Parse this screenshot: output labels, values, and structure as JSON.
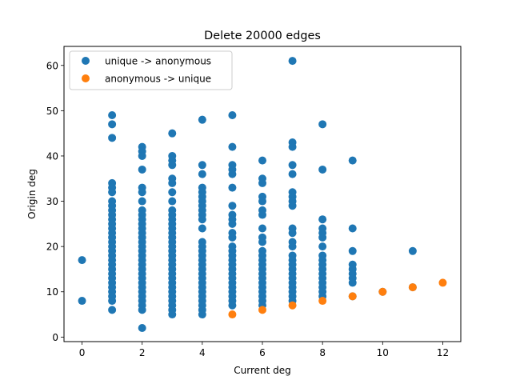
{
  "chart_data": {
    "type": "scatter",
    "title": "Delete 20000 edges",
    "xlabel": "Current deg",
    "ylabel": "Origin deg",
    "xlim": [
      -0.6,
      12.6
    ],
    "ylim": [
      -1.0,
      64.2
    ],
    "xticks": [
      0,
      2,
      4,
      6,
      8,
      10,
      12
    ],
    "yticks": [
      0,
      10,
      20,
      30,
      40,
      50,
      60
    ],
    "grid": false,
    "legend_position": "upper-left",
    "series": [
      {
        "name": "unique -> anonymous",
        "color": "#1f77b4",
        "points": [
          [
            0,
            17
          ],
          [
            0,
            8
          ],
          [
            1,
            49
          ],
          [
            1,
            47
          ],
          [
            1,
            44
          ],
          [
            1,
            34
          ],
          [
            1,
            33
          ],
          [
            1,
            32
          ],
          [
            1,
            30
          ],
          [
            1,
            29
          ],
          [
            1,
            28
          ],
          [
            1,
            27
          ],
          [
            1,
            26
          ],
          [
            1,
            25
          ],
          [
            1,
            24
          ],
          [
            1,
            23
          ],
          [
            1,
            22
          ],
          [
            1,
            21
          ],
          [
            1,
            20
          ],
          [
            1,
            19
          ],
          [
            1,
            18
          ],
          [
            1,
            17
          ],
          [
            1,
            16
          ],
          [
            1,
            15
          ],
          [
            1,
            14
          ],
          [
            1,
            13
          ],
          [
            1,
            12
          ],
          [
            1,
            11
          ],
          [
            1,
            10
          ],
          [
            1,
            9
          ],
          [
            1,
            8
          ],
          [
            1,
            6
          ],
          [
            2,
            42
          ],
          [
            2,
            41
          ],
          [
            2,
            40
          ],
          [
            2,
            37
          ],
          [
            2,
            33
          ],
          [
            2,
            32
          ],
          [
            2,
            30
          ],
          [
            2,
            28
          ],
          [
            2,
            27
          ],
          [
            2,
            26
          ],
          [
            2,
            25
          ],
          [
            2,
            24
          ],
          [
            2,
            23
          ],
          [
            2,
            22
          ],
          [
            2,
            21
          ],
          [
            2,
            20
          ],
          [
            2,
            19
          ],
          [
            2,
            18
          ],
          [
            2,
            17
          ],
          [
            2,
            16
          ],
          [
            2,
            15
          ],
          [
            2,
            14
          ],
          [
            2,
            13
          ],
          [
            2,
            12
          ],
          [
            2,
            11
          ],
          [
            2,
            10
          ],
          [
            2,
            9
          ],
          [
            2,
            8
          ],
          [
            2,
            7
          ],
          [
            2,
            6
          ],
          [
            2,
            2
          ],
          [
            3,
            45
          ],
          [
            3,
            40
          ],
          [
            3,
            39
          ],
          [
            3,
            38
          ],
          [
            3,
            35
          ],
          [
            3,
            34
          ],
          [
            3,
            32
          ],
          [
            3,
            30
          ],
          [
            3,
            28
          ],
          [
            3,
            27
          ],
          [
            3,
            26
          ],
          [
            3,
            25
          ],
          [
            3,
            24
          ],
          [
            3,
            23
          ],
          [
            3,
            22
          ],
          [
            3,
            21
          ],
          [
            3,
            20
          ],
          [
            3,
            19
          ],
          [
            3,
            18
          ],
          [
            3,
            17
          ],
          [
            3,
            16
          ],
          [
            3,
            15
          ],
          [
            3,
            14
          ],
          [
            3,
            13
          ],
          [
            3,
            12
          ],
          [
            3,
            11
          ],
          [
            3,
            10
          ],
          [
            3,
            9
          ],
          [
            3,
            8
          ],
          [
            3,
            7
          ],
          [
            3,
            6
          ],
          [
            3,
            5
          ],
          [
            4,
            48
          ],
          [
            4,
            38
          ],
          [
            4,
            36
          ],
          [
            4,
            33
          ],
          [
            4,
            32
          ],
          [
            4,
            31
          ],
          [
            4,
            30
          ],
          [
            4,
            29
          ],
          [
            4,
            28
          ],
          [
            4,
            27
          ],
          [
            4,
            26
          ],
          [
            4,
            24
          ],
          [
            4,
            21
          ],
          [
            4,
            20
          ],
          [
            4,
            19
          ],
          [
            4,
            18
          ],
          [
            4,
            17
          ],
          [
            4,
            16
          ],
          [
            4,
            15
          ],
          [
            4,
            14
          ],
          [
            4,
            13
          ],
          [
            4,
            12
          ],
          [
            4,
            11
          ],
          [
            4,
            10
          ],
          [
            4,
            9
          ],
          [
            4,
            8
          ],
          [
            4,
            7
          ],
          [
            4,
            6
          ],
          [
            4,
            5
          ],
          [
            5,
            49
          ],
          [
            5,
            42
          ],
          [
            5,
            38
          ],
          [
            5,
            37
          ],
          [
            5,
            36
          ],
          [
            5,
            33
          ],
          [
            5,
            29
          ],
          [
            5,
            27
          ],
          [
            5,
            26
          ],
          [
            5,
            25
          ],
          [
            5,
            23
          ],
          [
            5,
            22
          ],
          [
            5,
            20
          ],
          [
            5,
            19
          ],
          [
            5,
            18
          ],
          [
            5,
            17
          ],
          [
            5,
            16
          ],
          [
            5,
            15
          ],
          [
            5,
            14
          ],
          [
            5,
            13
          ],
          [
            5,
            12
          ],
          [
            5,
            11
          ],
          [
            5,
            10
          ],
          [
            5,
            9
          ],
          [
            5,
            8
          ],
          [
            5,
            7
          ],
          [
            6,
            39
          ],
          [
            6,
            35
          ],
          [
            6,
            34
          ],
          [
            6,
            31
          ],
          [
            6,
            30
          ],
          [
            6,
            28
          ],
          [
            6,
            27
          ],
          [
            6,
            24
          ],
          [
            6,
            22
          ],
          [
            6,
            21
          ],
          [
            6,
            19
          ],
          [
            6,
            18
          ],
          [
            6,
            17
          ],
          [
            6,
            16
          ],
          [
            6,
            15
          ],
          [
            6,
            14
          ],
          [
            6,
            13
          ],
          [
            6,
            12
          ],
          [
            6,
            11
          ],
          [
            6,
            10
          ],
          [
            6,
            9
          ],
          [
            6,
            8
          ],
          [
            6,
            7
          ],
          [
            7,
            61
          ],
          [
            7,
            43
          ],
          [
            7,
            42
          ],
          [
            7,
            38
          ],
          [
            7,
            36
          ],
          [
            7,
            32
          ],
          [
            7,
            31
          ],
          [
            7,
            30
          ],
          [
            7,
            29
          ],
          [
            7,
            24
          ],
          [
            7,
            23
          ],
          [
            7,
            21
          ],
          [
            7,
            20
          ],
          [
            7,
            18
          ],
          [
            7,
            17
          ],
          [
            7,
            16
          ],
          [
            7,
            15
          ],
          [
            7,
            14
          ],
          [
            7,
            13
          ],
          [
            7,
            12
          ],
          [
            7,
            11
          ],
          [
            7,
            10
          ],
          [
            7,
            9
          ],
          [
            7,
            8
          ],
          [
            8,
            47
          ],
          [
            8,
            37
          ],
          [
            8,
            26
          ],
          [
            8,
            24
          ],
          [
            8,
            23
          ],
          [
            8,
            22
          ],
          [
            8,
            20
          ],
          [
            8,
            18
          ],
          [
            8,
            17
          ],
          [
            8,
            16
          ],
          [
            8,
            15
          ],
          [
            8,
            14
          ],
          [
            8,
            13
          ],
          [
            8,
            12
          ],
          [
            8,
            11
          ],
          [
            8,
            10
          ],
          [
            8,
            9
          ],
          [
            9,
            39
          ],
          [
            9,
            24
          ],
          [
            9,
            19
          ],
          [
            9,
            16
          ],
          [
            9,
            15
          ],
          [
            9,
            14
          ],
          [
            9,
            13
          ],
          [
            9,
            12
          ],
          [
            9,
            9
          ],
          [
            10,
            10
          ],
          [
            11,
            19
          ],
          [
            11,
            11
          ]
        ]
      },
      {
        "name": "anonymous -> unique",
        "color": "#ff7f0e",
        "points": [
          [
            5,
            5
          ],
          [
            6,
            6
          ],
          [
            7,
            7
          ],
          [
            8,
            8
          ],
          [
            9,
            9
          ],
          [
            10,
            10
          ],
          [
            11,
            11
          ],
          [
            12,
            12
          ]
        ]
      }
    ]
  }
}
